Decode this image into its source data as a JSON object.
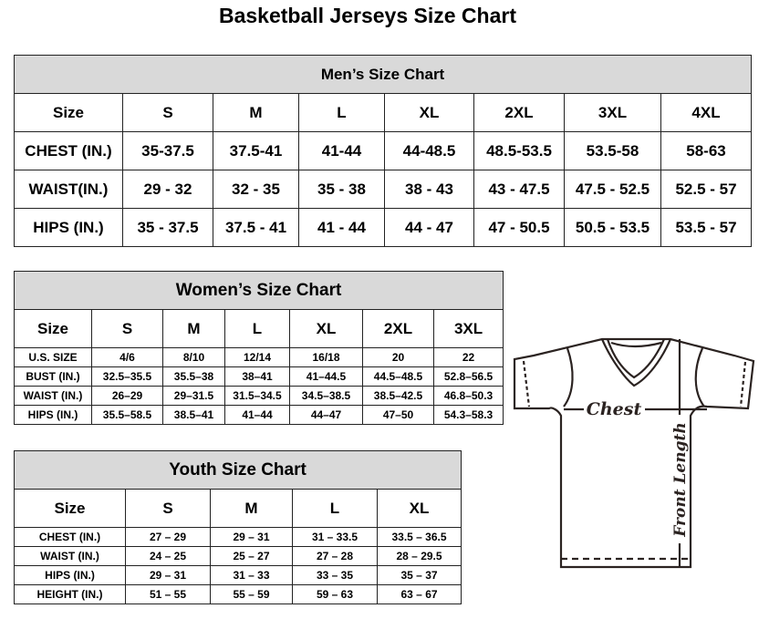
{
  "title": "Basketball Jerseys Size Chart",
  "men": {
    "heading": "Men’s Size Chart",
    "header": [
      "Size",
      "S",
      "M",
      "L",
      "XL",
      "2XL",
      "3XL",
      "4XL"
    ],
    "rows": [
      [
        "CHEST (IN.)",
        "35-37.5",
        "37.5-41",
        "41-44",
        "44-48.5",
        "48.5-53.5",
        "53.5-58",
        "58-63"
      ],
      [
        "WAIST(IN.)",
        "29 - 32",
        "32 - 35",
        "35 - 38",
        "38 - 43",
        "43 - 47.5",
        "47.5 - 52.5",
        "52.5 - 57"
      ],
      [
        "HIPS (IN.)",
        "35 - 37.5",
        "37.5 - 41",
        "41 - 44",
        "44 - 47",
        "47 - 50.5",
        "50.5 - 53.5",
        "53.5 - 57"
      ]
    ]
  },
  "women": {
    "heading": "Women’s Size Chart",
    "header": [
      "Size",
      "S",
      "M",
      "L",
      "XL",
      "2XL",
      "3XL"
    ],
    "rows": [
      [
        "U.S.  SIZE",
        "4/6",
        "8/10",
        "12/14",
        "16/18",
        "20",
        "22"
      ],
      [
        "BUST  (IN.)",
        "32.5–35.5",
        "35.5–38",
        "38–41",
        "41–44.5",
        "44.5–48.5",
        "52.8–56.5"
      ],
      [
        "WAIST  (IN.)",
        "26–29",
        "29–31.5",
        "31.5–34.5",
        "34.5–38.5",
        "38.5–42.5",
        "46.8–50.3"
      ],
      [
        "HIPS  (IN.)",
        "35.5–58.5",
        "38.5–41",
        "41–44",
        "44–47",
        "47–50",
        "54.3–58.3"
      ]
    ]
  },
  "youth": {
    "heading": "Youth Size Chart",
    "header": [
      "Size",
      "S",
      "M",
      "L",
      "XL"
    ],
    "rows": [
      [
        "CHEST  (IN.)",
        "27  –  29",
        "29  –  31",
        "31  –  33.5",
        "33.5  –  36.5"
      ],
      [
        "WAIST  (IN.)",
        "24  –  25",
        "25  –  27",
        "27  –  28",
        "28  –  29.5"
      ],
      [
        "HIPS  (IN.)",
        "29  –  31",
        "31  –  33",
        "33  –  35",
        "35  –  37"
      ],
      [
        "HEIGHT  (IN.)",
        "51  –  55",
        "55  –  59",
        "59  –  63",
        "63  –  67"
      ]
    ]
  },
  "diagram": {
    "chest_label": "Chest",
    "length_label": "Front Length"
  }
}
